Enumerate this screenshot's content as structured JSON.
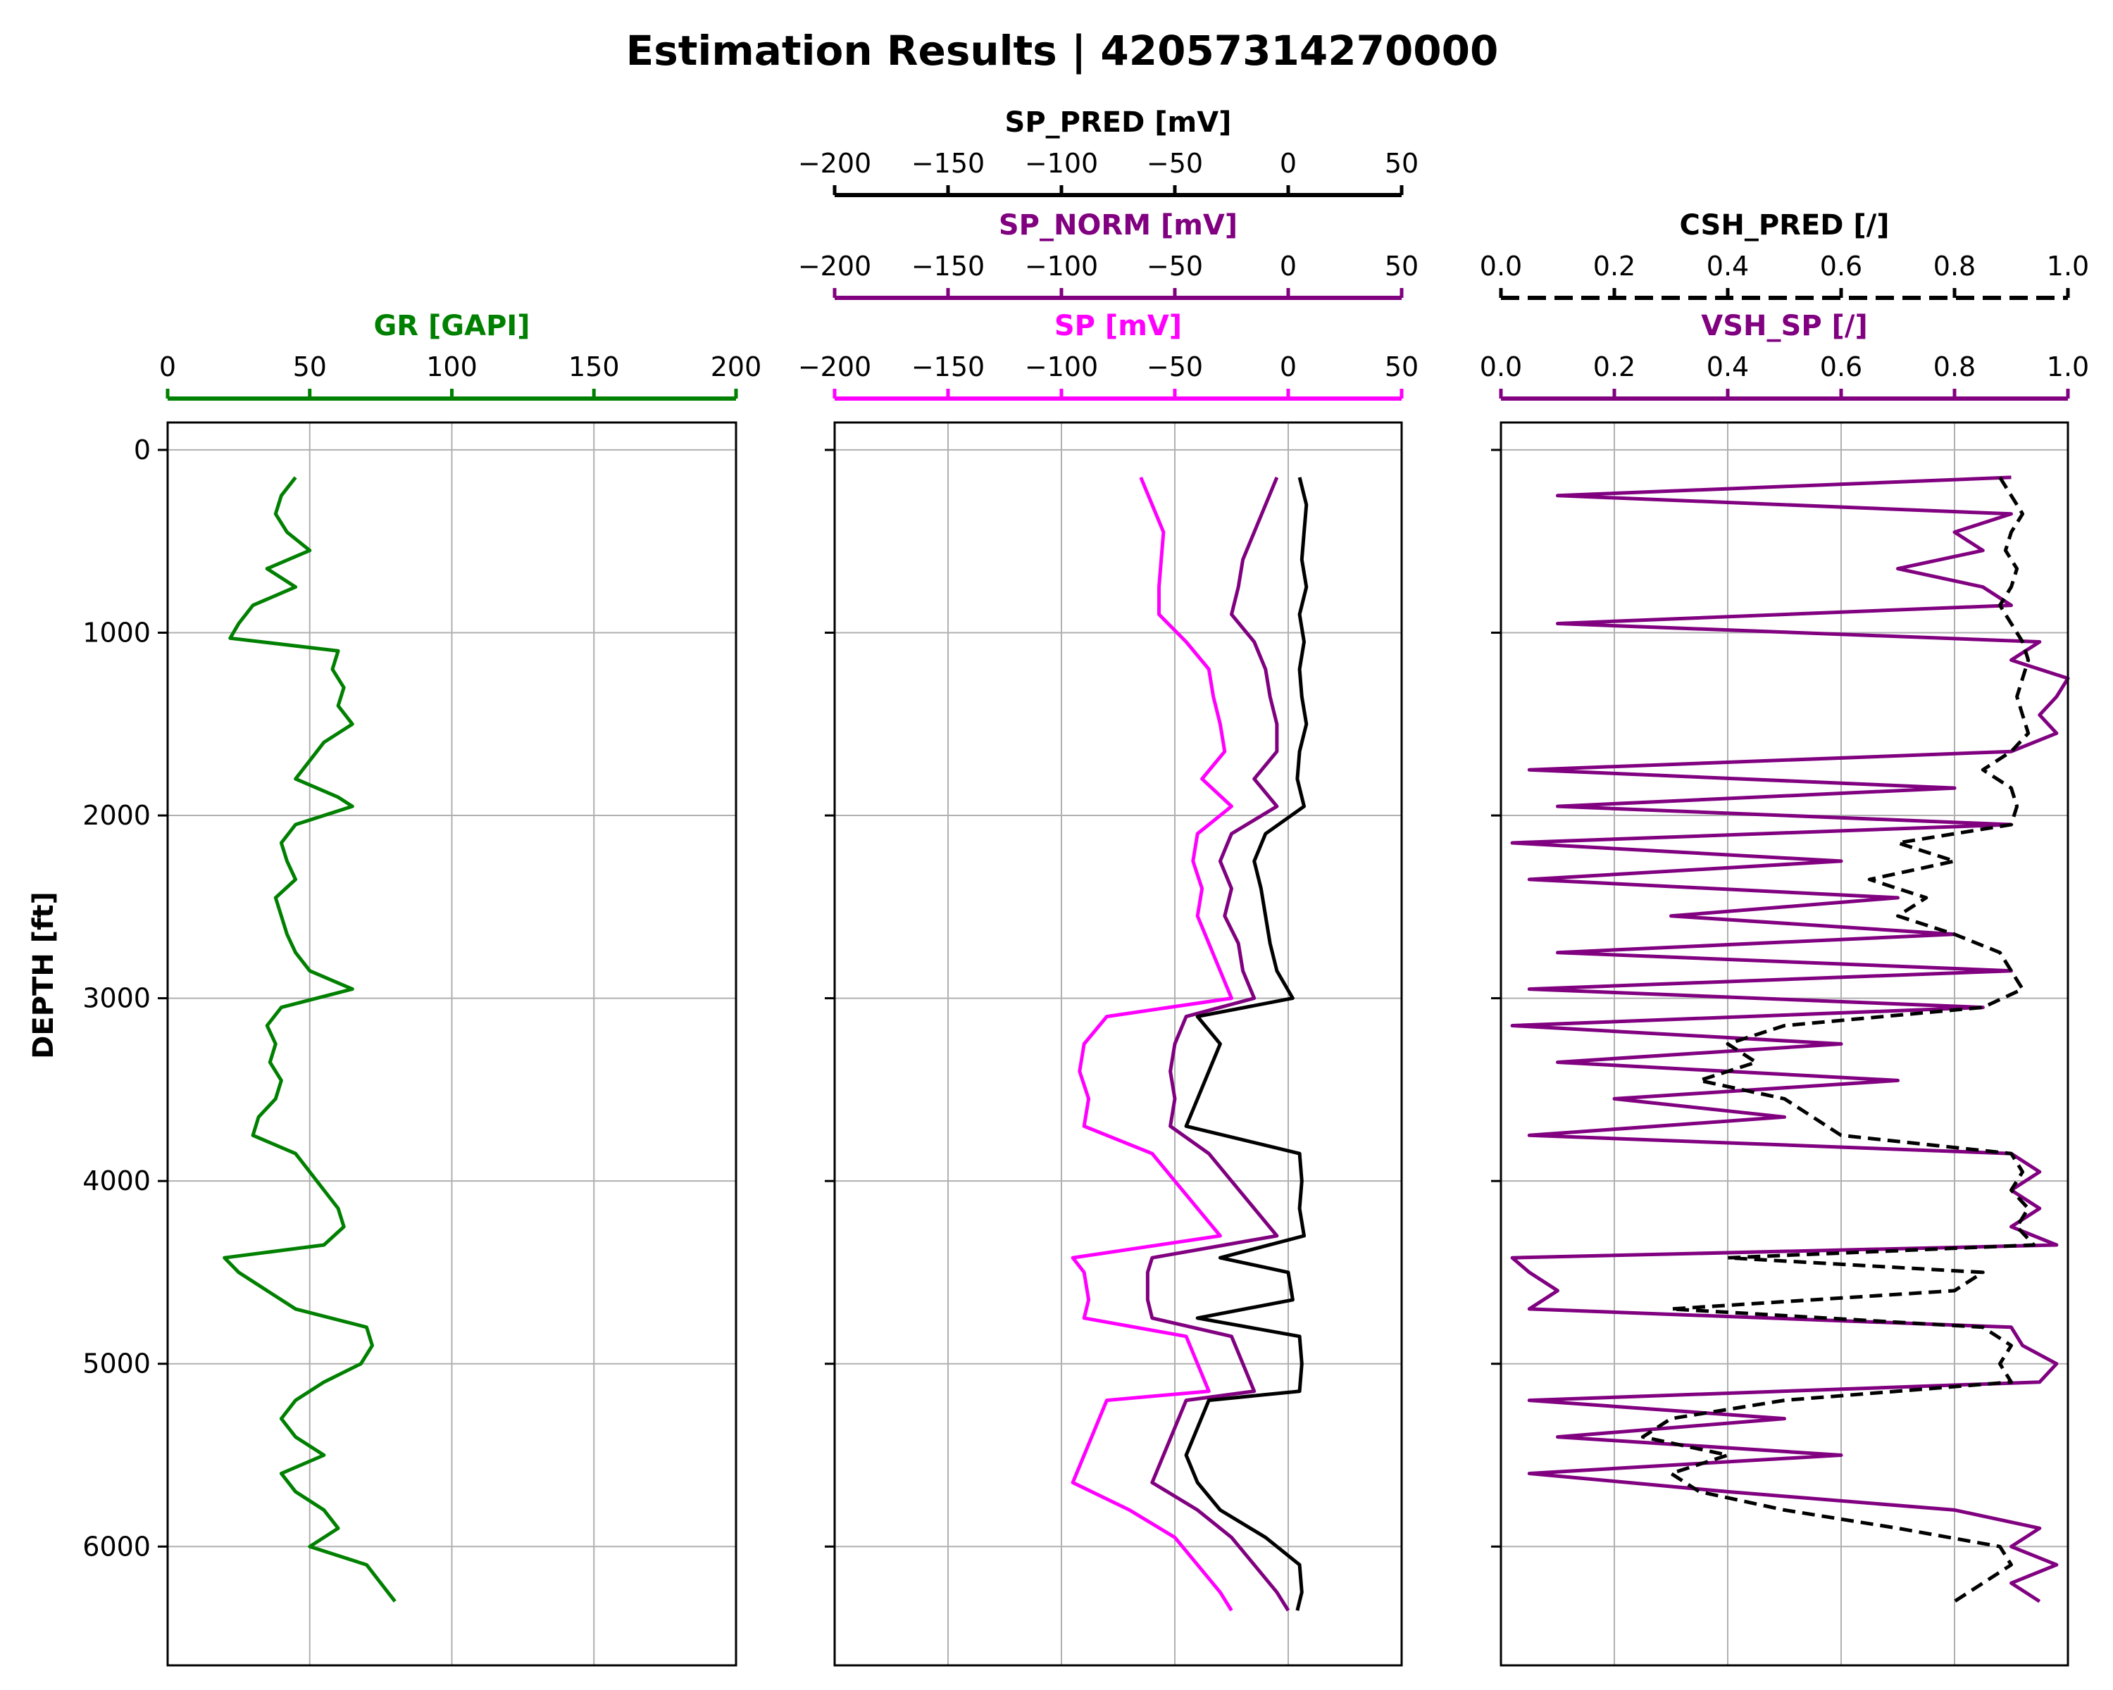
{
  "title": "Estimation Results | 42057314270000",
  "colors": {
    "gr": "#008000",
    "sp": "#ff00ff",
    "sp_norm": "#800080",
    "sp_pred": "#000000",
    "vsh_sp": "#800080",
    "csh_pred": "#000000",
    "grid": "#b0b0b0"
  },
  "chart_data": [
    {
      "type": "line",
      "track": "GR",
      "ylabel": "DEPTH [ft]",
      "ylim": [
        6650,
        -150
      ],
      "yticks": [
        "0",
        "1000",
        "2000",
        "3000",
        "4000",
        "5000",
        "6000"
      ],
      "grid": true,
      "axes": [
        {
          "label": "GR [GAPI]",
          "color": "#008000",
          "xlim": [
            0,
            200
          ],
          "ticks": [
            "0",
            "50",
            "100",
            "150",
            "200"
          ]
        }
      ],
      "series": [
        {
          "name": "GR",
          "color": "#008000",
          "depth": [
            150,
            250,
            350,
            450,
            550,
            650,
            750,
            850,
            950,
            1030,
            1100,
            1200,
            1300,
            1400,
            1500,
            1600,
            1700,
            1800,
            1900,
            1950,
            2050,
            2150,
            2250,
            2350,
            2450,
            2550,
            2650,
            2750,
            2850,
            2950,
            3050,
            3150,
            3250,
            3350,
            3450,
            3550,
            3650,
            3750,
            3850,
            3950,
            4050,
            4150,
            4250,
            4350,
            4420,
            4500,
            4600,
            4700,
            4800,
            4900,
            5000,
            5100,
            5200,
            5300,
            5400,
            5500,
            5600,
            5700,
            5800,
            5900,
            6000,
            6100,
            6200,
            6300
          ],
          "values": [
            45,
            40,
            38,
            42,
            50,
            35,
            45,
            30,
            25,
            22,
            60,
            58,
            62,
            60,
            65,
            55,
            50,
            45,
            60,
            65,
            45,
            40,
            42,
            45,
            38,
            40,
            42,
            45,
            50,
            65,
            40,
            35,
            38,
            36,
            40,
            38,
            32,
            30,
            45,
            50,
            55,
            60,
            62,
            55,
            20,
            25,
            35,
            45,
            70,
            72,
            68,
            55,
            45,
            40,
            45,
            55,
            40,
            45,
            55,
            60,
            50,
            70,
            75,
            80
          ]
        }
      ]
    },
    {
      "type": "line",
      "track": "SP",
      "ylim": [
        6650,
        -150
      ],
      "grid": true,
      "axes": [
        {
          "label": "SP_PRED [mV]",
          "color": "#000000",
          "xlim": [
            -200,
            50
          ],
          "ticks": [
            "−200",
            "−150",
            "−100",
            "−50",
            "0",
            "50"
          ]
        },
        {
          "label": "SP_NORM [mV]",
          "color": "#800080",
          "xlim": [
            -200,
            50
          ],
          "ticks": [
            "−200",
            "−150",
            "−100",
            "−50",
            "0",
            "50"
          ]
        },
        {
          "label": "SP [mV]",
          "color": "#ff00ff",
          "xlim": [
            -200,
            50
          ],
          "ticks": [
            "−200",
            "−150",
            "−100",
            "−50",
            "0",
            "50"
          ]
        }
      ],
      "series": [
        {
          "name": "SP",
          "color": "#ff00ff",
          "depth": [
            150,
            300,
            450,
            600,
            750,
            900,
            1050,
            1200,
            1350,
            1500,
            1650,
            1800,
            1950,
            2100,
            2250,
            2400,
            2550,
            2700,
            2850,
            3000,
            3100,
            3250,
            3400,
            3550,
            3700,
            3850,
            4000,
            4150,
            4300,
            4420,
            4500,
            4650,
            4750,
            4850,
            5000,
            5150,
            5200,
            5350,
            5500,
            5650,
            5800,
            5950,
            6100,
            6250,
            6350
          ],
          "values": [
            -65,
            -60,
            -55,
            -56,
            -57,
            -57,
            -45,
            -35,
            -33,
            -30,
            -28,
            -38,
            -25,
            -40,
            -42,
            -38,
            -40,
            -35,
            -30,
            -25,
            -80,
            -90,
            -92,
            -88,
            -90,
            -60,
            -50,
            -40,
            -30,
            -95,
            -90,
            -88,
            -90,
            -45,
            -40,
            -35,
            -80,
            -85,
            -90,
            -95,
            -70,
            -50,
            -40,
            -30,
            -25
          ]
        },
        {
          "name": "SP_NORM",
          "color": "#800080",
          "depth": [
            150,
            300,
            450,
            600,
            750,
            900,
            1050,
            1200,
            1350,
            1500,
            1650,
            1800,
            1950,
            2100,
            2250,
            2400,
            2550,
            2700,
            2850,
            3000,
            3100,
            3250,
            3400,
            3550,
            3700,
            3850,
            4000,
            4150,
            4300,
            4420,
            4500,
            4650,
            4750,
            4850,
            5000,
            5150,
            5200,
            5350,
            5500,
            5650,
            5800,
            5950,
            6100,
            6250,
            6350
          ],
          "values": [
            -5,
            -10,
            -15,
            -20,
            -22,
            -25,
            -15,
            -10,
            -8,
            -5,
            -5,
            -15,
            -5,
            -25,
            -30,
            -25,
            -28,
            -22,
            -20,
            -15,
            -45,
            -50,
            -52,
            -50,
            -52,
            -35,
            -25,
            -15,
            -5,
            -60,
            -62,
            -62,
            -60,
            -25,
            -20,
            -15,
            -45,
            -50,
            -55,
            -60,
            -40,
            -25,
            -15,
            -5,
            0
          ]
        },
        {
          "name": "SP_PRED",
          "color": "#000000",
          "depth": [
            150,
            300,
            450,
            600,
            750,
            900,
            1050,
            1200,
            1350,
            1500,
            1650,
            1800,
            1950,
            2100,
            2250,
            2400,
            2550,
            2700,
            2850,
            3000,
            3100,
            3250,
            3400,
            3550,
            3700,
            3850,
            4000,
            4150,
            4300,
            4420,
            4500,
            4650,
            4750,
            4850,
            5000,
            5150,
            5200,
            5350,
            5500,
            5650,
            5800,
            5950,
            6100,
            6250,
            6350
          ],
          "values": [
            5,
            8,
            7,
            6,
            8,
            5,
            7,
            5,
            6,
            8,
            5,
            4,
            7,
            -10,
            -15,
            -12,
            -10,
            -8,
            -5,
            2,
            -40,
            -30,
            -35,
            -40,
            -45,
            5,
            6,
            5,
            7,
            -30,
            0,
            2,
            -40,
            5,
            6,
            5,
            -35,
            -40,
            -45,
            -40,
            -30,
            -10,
            5,
            6,
            4
          ]
        }
      ]
    },
    {
      "type": "line",
      "track": "VSH",
      "ylim": [
        6650,
        -150
      ],
      "grid": true,
      "axes": [
        {
          "label": "CSH_PRED [/]",
          "color": "#000000",
          "dashed": true,
          "xlim": [
            0,
            1
          ],
          "ticks": [
            "0.0",
            "0.2",
            "0.4",
            "0.6",
            "0.8",
            "1.0"
          ]
        },
        {
          "label": "VSH_SP [/]",
          "color": "#800080",
          "xlim": [
            0,
            1
          ],
          "ticks": [
            "0.0",
            "0.2",
            "0.4",
            "0.6",
            "0.8",
            "1.0"
          ]
        }
      ],
      "series": [
        {
          "name": "VSH_SP",
          "color": "#800080",
          "depth": [
            150,
            250,
            350,
            450,
            550,
            650,
            750,
            850,
            950,
            1050,
            1150,
            1250,
            1350,
            1450,
            1550,
            1650,
            1750,
            1850,
            1950,
            2050,
            2150,
            2250,
            2350,
            2450,
            2550,
            2650,
            2750,
            2850,
            2950,
            3050,
            3150,
            3250,
            3350,
            3450,
            3550,
            3650,
            3750,
            3850,
            3950,
            4050,
            4150,
            4250,
            4350,
            4420,
            4500,
            4600,
            4700,
            4800,
            4900,
            5000,
            5100,
            5200,
            5300,
            5400,
            5500,
            5600,
            5700,
            5800,
            5900,
            6000,
            6100,
            6200,
            6300
          ],
          "values": [
            0.9,
            0.1,
            0.9,
            0.8,
            0.85,
            0.7,
            0.85,
            0.9,
            0.1,
            0.95,
            0.9,
            1.0,
            0.98,
            0.95,
            0.98,
            0.9,
            0.05,
            0.8,
            0.1,
            0.9,
            0.02,
            0.6,
            0.05,
            0.7,
            0.3,
            0.8,
            0.1,
            0.9,
            0.05,
            0.85,
            0.02,
            0.6,
            0.1,
            0.7,
            0.2,
            0.5,
            0.05,
            0.9,
            0.95,
            0.9,
            0.95,
            0.9,
            0.98,
            0.02,
            0.05,
            0.1,
            0.05,
            0.9,
            0.92,
            0.98,
            0.95,
            0.05,
            0.5,
            0.1,
            0.6,
            0.05,
            0.4,
            0.8,
            0.95,
            0.9,
            0.98,
            0.9,
            0.95
          ]
        },
        {
          "name": "CSH_PRED",
          "color": "#000000",
          "dashed": true,
          "depth": [
            150,
            250,
            350,
            450,
            550,
            650,
            750,
            850,
            950,
            1050,
            1150,
            1250,
            1350,
            1450,
            1550,
            1650,
            1750,
            1850,
            1950,
            2050,
            2150,
            2250,
            2350,
            2450,
            2550,
            2650,
            2750,
            2850,
            2950,
            3050,
            3150,
            3250,
            3350,
            3450,
            3550,
            3650,
            3750,
            3850,
            3950,
            4050,
            4150,
            4250,
            4350,
            4420,
            4500,
            4600,
            4700,
            4800,
            4900,
            5000,
            5100,
            5200,
            5300,
            5400,
            5500,
            5600,
            5700,
            5800,
            5900,
            6000,
            6100,
            6200,
            6300
          ],
          "values": [
            0.88,
            0.9,
            0.92,
            0.9,
            0.89,
            0.91,
            0.9,
            0.88,
            0.9,
            0.92,
            0.93,
            0.92,
            0.91,
            0.92,
            0.93,
            0.9,
            0.85,
            0.9,
            0.91,
            0.9,
            0.7,
            0.8,
            0.65,
            0.75,
            0.7,
            0.8,
            0.88,
            0.9,
            0.92,
            0.85,
            0.5,
            0.4,
            0.45,
            0.35,
            0.5,
            0.55,
            0.6,
            0.9,
            0.92,
            0.9,
            0.93,
            0.91,
            0.94,
            0.4,
            0.85,
            0.8,
            0.3,
            0.85,
            0.9,
            0.88,
            0.9,
            0.5,
            0.3,
            0.25,
            0.4,
            0.3,
            0.35,
            0.5,
            0.7,
            0.88,
            0.9,
            0.85,
            0.8
          ]
        }
      ]
    }
  ]
}
